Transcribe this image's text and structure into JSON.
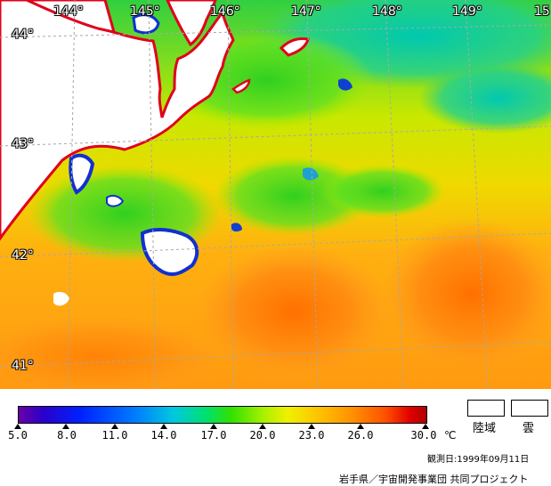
{
  "map": {
    "lon_labels": [
      "144°",
      "145°",
      "146°",
      "147°",
      "148°",
      "149°",
      "15"
    ],
    "lat_labels": [
      "44°",
      "43°",
      "42°",
      "41°"
    ]
  },
  "legend": {
    "ticks": [
      "5.0",
      "8.0",
      "11.0",
      "14.0",
      "17.0",
      "20.0",
      "23.0",
      "26.0",
      "30.0"
    ],
    "unit": "℃",
    "land_label": "陸域",
    "cloud_label": "雲"
  },
  "footer": {
    "observation_date": "観測日:1999年09月11日",
    "credit": "岩手県／宇宙開発事業団 共同プロジェクト"
  },
  "colors": {
    "coastline": "#e0001c",
    "land": "#ffffff",
    "grid": "#a8a8a8",
    "warm_sea": "#ff9a10",
    "mid_sea": "#f0e000",
    "cool_sea": "#40d000",
    "cold_sea": "#00c8b0"
  }
}
